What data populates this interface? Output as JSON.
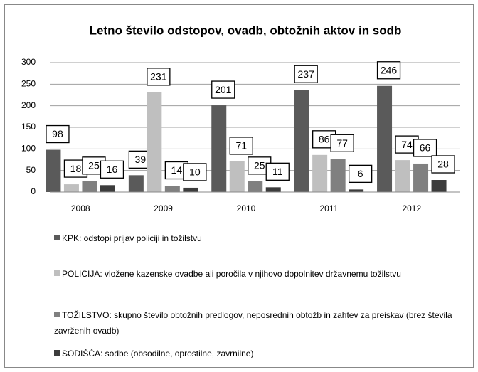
{
  "chart_data": {
    "type": "bar",
    "title": "Letno število odstopov, ovadb, obtožnih aktov in sodb",
    "categories": [
      "2008",
      "2009",
      "2010",
      "2011",
      "2012"
    ],
    "series": [
      {
        "name": "KPK: odstopi prijav policiji in tožilstvu",
        "color": "#5a5a5a",
        "values": [
          98,
          39,
          201,
          237,
          246
        ]
      },
      {
        "name": "POLICIJA: vložene kazenske ovadbe ali poročila v njihovo dopolnitev državnemu tožilstvu",
        "color": "#bfbfbf",
        "values": [
          18,
          231,
          71,
          86,
          74
        ]
      },
      {
        "name": "TOŽILSTVO: skupno število obtožnih predlogov, neposrednih obtožb in zahtev za preiskav (brez števila zavrženih ovadb)",
        "color": "#808080",
        "values": [
          25,
          14,
          25,
          77,
          66
        ]
      },
      {
        "name": "SODIŠČA: sodbe (obsodilne, oprostilne, zavrnilne)",
        "color": "#3c3c3c",
        "values": [
          16,
          10,
          11,
          6,
          28
        ]
      }
    ],
    "ylim": [
      0,
      300
    ],
    "yticks": [
      0,
      50,
      100,
      150,
      200,
      250,
      300
    ],
    "grid": true
  }
}
